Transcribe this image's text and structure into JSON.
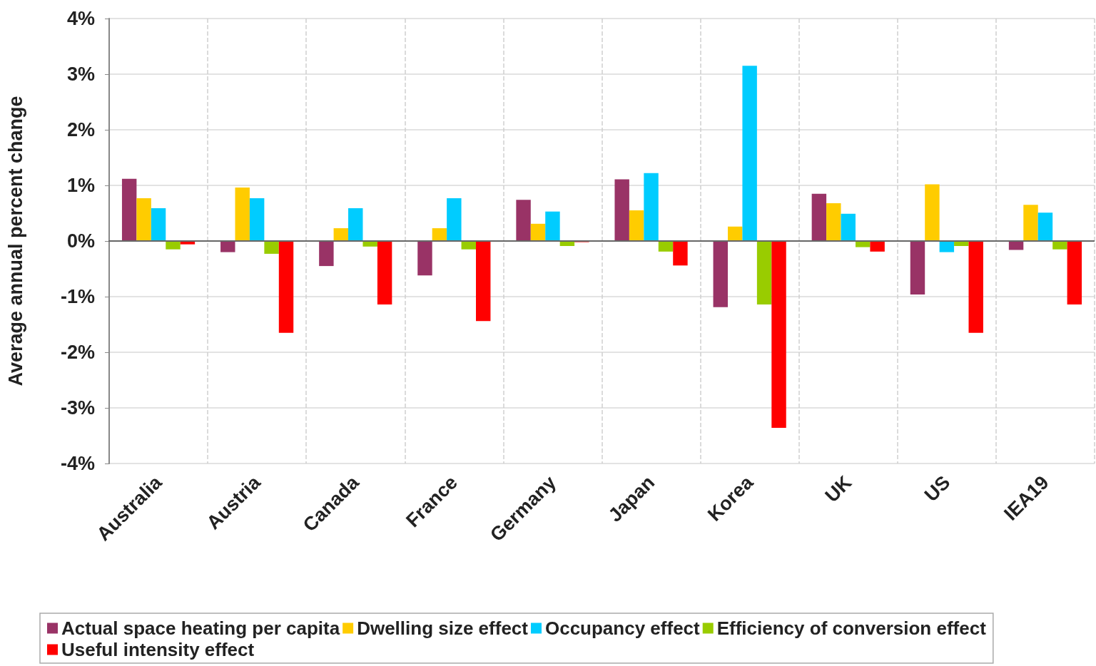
{
  "chart_data": {
    "type": "bar",
    "ylabel": "Average annual percent change",
    "categories": [
      "Australia",
      "Austria",
      "Canada",
      "France",
      "Germany",
      "Japan",
      "Korea",
      "UK",
      "US",
      "IEA19"
    ],
    "series": [
      {
        "name": "Actual space heating per capita",
        "color": "#993366",
        "values": [
          1.12,
          -0.2,
          -0.45,
          -0.62,
          0.74,
          1.11,
          -1.19,
          0.85,
          -0.96,
          -0.16
        ]
      },
      {
        "name": "Dwelling size effect",
        "color": "#ffcc00",
        "values": [
          0.77,
          0.96,
          0.23,
          0.23,
          0.31,
          0.55,
          0.26,
          0.68,
          1.02,
          0.65
        ]
      },
      {
        "name": "Occupancy effect",
        "color": "#00ccff",
        "values": [
          0.59,
          0.77,
          0.59,
          0.77,
          0.53,
          1.22,
          3.15,
          0.49,
          -0.2,
          0.51
        ]
      },
      {
        "name": "Efficiency of conversion effect",
        "color": "#99cc00",
        "values": [
          -0.15,
          -0.23,
          -0.1,
          -0.15,
          -0.09,
          -0.19,
          -1.14,
          -0.11,
          -0.09,
          -0.15
        ]
      },
      {
        "name": "Useful intensity effect",
        "color": "#ff0000",
        "values": [
          -0.06,
          -1.65,
          -1.14,
          -1.44,
          -0.02,
          -0.44,
          -3.36,
          -0.19,
          -1.65,
          -1.14
        ]
      }
    ],
    "ylim": [
      -4,
      4
    ],
    "yticks": [
      {
        "value": -4,
        "label": "-4%"
      },
      {
        "value": -3,
        "label": "-3%"
      },
      {
        "value": -2,
        "label": "-2%"
      },
      {
        "value": -1,
        "label": "-1%"
      },
      {
        "value": 0,
        "label": "0%"
      },
      {
        "value": 1,
        "label": "1%"
      },
      {
        "value": 2,
        "label": "2%"
      },
      {
        "value": 3,
        "label": "3%"
      },
      {
        "value": 4,
        "label": "4%"
      }
    ],
    "grid": true,
    "legend": "bottom"
  }
}
